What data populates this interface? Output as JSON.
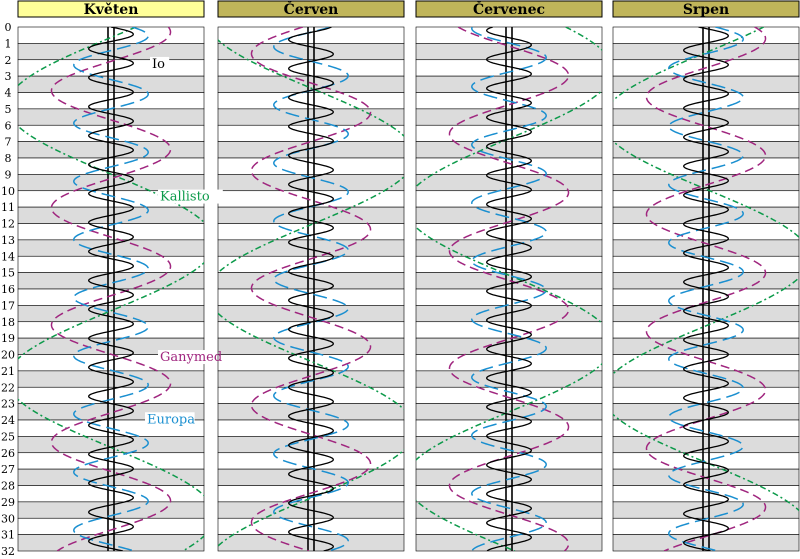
{
  "chart_data": {
    "type": "line",
    "title": "",
    "panels": [
      {
        "month": "Květen",
        "phase_offset": 0.0
      },
      {
        "month": "Červen",
        "phase_offset": 0.35
      },
      {
        "month": "Červenec",
        "phase_offset": 0.7
      },
      {
        "month": "Srpen",
        "phase_offset": 1.05
      }
    ],
    "y_axis": {
      "label": "",
      "ticks": [
        0,
        1,
        2,
        3,
        4,
        5,
        6,
        7,
        8,
        9,
        10,
        11,
        12,
        13,
        14,
        15,
        16,
        17,
        18,
        19,
        20,
        21,
        22,
        23,
        24,
        25,
        26,
        27,
        28,
        29,
        30,
        31,
        32
      ],
      "range": [
        0,
        32
      ]
    },
    "series": [
      {
        "name": "Io",
        "color": "#000000",
        "style": "solid",
        "period_days": 1.769,
        "amplitude": 0.12,
        "phase": 0.0
      },
      {
        "name": "Europa",
        "color": "#1a8fd0",
        "style": "long-dash",
        "period_days": 3.551,
        "amplitude": 0.2,
        "phase": 0.6
      },
      {
        "name": "Ganymed",
        "color": "#a0267f",
        "style": "dash",
        "period_days": 7.155,
        "amplitude": 0.32,
        "phase": 1.3
      },
      {
        "name": "Kallisto",
        "color": "#0c9a4a",
        "style": "dash-dot",
        "period_days": 16.689,
        "amplitude": 0.56,
        "phase": 2.9
      }
    ],
    "annotations": [
      {
        "text": "Io",
        "series": "Io",
        "panel": 0,
        "day": 2.5
      },
      {
        "text": "Kallisto",
        "series": "Kallisto",
        "panel": 0,
        "day": 10.6
      },
      {
        "text": "Ganymed",
        "series": "Ganymed",
        "panel": 0,
        "day": 20.4
      },
      {
        "text": "Europa",
        "series": "Europa",
        "panel": 0,
        "day": 24.2
      }
    ],
    "header_colors": {
      "first": "#ffff99",
      "others": "#c0b55a"
    },
    "row_colors": {
      "odd": "#dcdcdc",
      "even": "#ffffff"
    }
  }
}
